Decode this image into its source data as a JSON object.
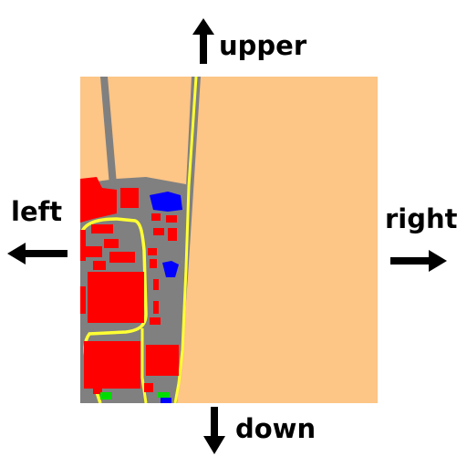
{
  "directions": {
    "up": "upper",
    "left": "left",
    "right": "right",
    "down": "down"
  },
  "icons": {
    "up": "arrow-up-icon",
    "left": "arrow-left-icon",
    "right": "arrow-right-icon",
    "down": "arrow-down-icon"
  },
  "colors": {
    "land": "#FDC586",
    "road": "#808080",
    "road_line": "#FFFF33",
    "building": "#FF0000",
    "water": "#0000FF",
    "vegetation": "#00DD00",
    "arrow": "#000000",
    "background": "#FFFFFF"
  }
}
